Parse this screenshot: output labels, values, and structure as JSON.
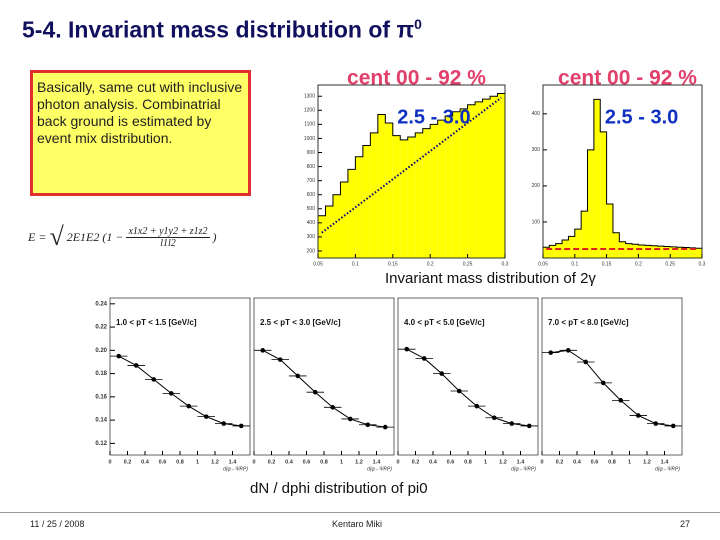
{
  "title": "5-4. Invariant mass distribution of π",
  "title_superscript": "0",
  "note": "Basically, same cut with inclusive photon analysis. Combinatrial back ground is estimated by event mix distribution.",
  "formula": {
    "lhs": "E = ",
    "root": "2E1E2",
    "open": "(1 −",
    "numerator": "x1x2 + y1y2 + z1z2",
    "denominator": "l1l2",
    "close": ")"
  },
  "caption_mass": "Invariant mass distribution of 2γ",
  "caption_dphi": "dN / dphi distribution of pi0",
  "footer": {
    "date": "11 / 25 / 2008",
    "author": "Kentaro Miki",
    "page": "27"
  },
  "chart_data": [
    {
      "type": "histogram",
      "title": "cent 00 - 92 %",
      "subtitle": "2.5 - 3.0",
      "color": "#ffff00",
      "background_color": "#000080",
      "background_style": "dotted",
      "bins": [
        0.05,
        0.06,
        0.07,
        0.08,
        0.09,
        0.1,
        0.11,
        0.12,
        0.13,
        0.14,
        0.15,
        0.16,
        0.17,
        0.18,
        0.19,
        0.2,
        0.21,
        0.22,
        0.23,
        0.24,
        0.25,
        0.26,
        0.27,
        0.28,
        0.29,
        0.3
      ],
      "counts": [
        450,
        520,
        600,
        690,
        780,
        870,
        950,
        1040,
        1170,
        1110,
        1020,
        990,
        1010,
        1040,
        1070,
        1100,
        1130,
        1160,
        1190,
        1210,
        1240,
        1260,
        1280,
        1300,
        1320
      ],
      "background": [
        330,
        370,
        410,
        450,
        490,
        530,
        570,
        610,
        650,
        690,
        730,
        770,
        810,
        850,
        890,
        930,
        970,
        1010,
        1050,
        1090,
        1130,
        1170,
        1210,
        1250,
        1290
      ],
      "xlim": [
        0.05,
        0.3
      ],
      "xticks": [
        0.05,
        0.1,
        0.15,
        0.2,
        0.25,
        0.3
      ],
      "ylim": [
        150,
        1380
      ],
      "yticks": [
        200,
        300,
        400,
        500,
        600,
        700,
        800,
        900,
        1000,
        1100,
        1200,
        1300
      ]
    },
    {
      "type": "histogram",
      "title": "cent 00 - 92 %",
      "subtitle": "2.5 - 3.0",
      "color": "#ffff00",
      "background_color": "#e02020",
      "background_style": "dashed",
      "bins": [
        0.05,
        0.06,
        0.07,
        0.08,
        0.09,
        0.1,
        0.11,
        0.12,
        0.13,
        0.14,
        0.15,
        0.16,
        0.17,
        0.18,
        0.19,
        0.2,
        0.21,
        0.22,
        0.23,
        0.24,
        0.25,
        0.26,
        0.27,
        0.28,
        0.29,
        0.3
      ],
      "counts": [
        30,
        35,
        40,
        50,
        60,
        80,
        130,
        300,
        440,
        350,
        150,
        70,
        45,
        40,
        38,
        36,
        35,
        34,
        33,
        32,
        31,
        30,
        29,
        28,
        27
      ],
      "background": [
        25,
        25,
        25,
        25,
        25,
        25,
        25,
        25,
        25,
        25,
        25,
        25,
        25,
        25,
        25,
        25,
        25,
        25,
        25,
        25,
        25,
        25,
        25,
        25,
        25
      ],
      "xlim": [
        0.05,
        0.3
      ],
      "xticks": [
        0.05,
        0.1,
        0.15,
        0.2,
        0.25,
        0.3
      ],
      "ylim": [
        0,
        480
      ],
      "yticks": [
        100,
        200,
        300,
        400
      ]
    },
    {
      "type": "panels",
      "xlabel": "d(φ - ΨRP)",
      "xerr": 0.1,
      "x": [
        0.1,
        0.3,
        0.5,
        0.7,
        0.9,
        1.1,
        1.3,
        1.5
      ],
      "xlim": [
        0,
        1.6
      ],
      "xticks": [
        0,
        0.2,
        0.4,
        0.6,
        0.8,
        1,
        1.2,
        1.4
      ],
      "ylim": [
        0.11,
        0.245
      ],
      "yticks": [
        0.12,
        0.14,
        0.16,
        0.18,
        {
          "value": 0.2,
          "label": "0.20"
        },
        0.22,
        0.24
      ],
      "series": [
        {
          "name": "1.0 < pT < 1.5 [GeV/c]",
          "color": "#000000",
          "values": [
            0.195,
            0.187,
            0.175,
            0.163,
            0.152,
            0.143,
            0.137,
            0.135
          ]
        },
        {
          "name": "2.5 < pT < 3.0 [GeV/c]",
          "color": "#000000",
          "values": [
            0.2,
            0.192,
            0.178,
            0.164,
            0.151,
            0.141,
            0.136,
            0.134
          ]
        },
        {
          "name": "4.0 < pT < 5.0 [GeV/c]",
          "color": "#000000",
          "values": [
            0.201,
            0.193,
            0.18,
            0.165,
            0.152,
            0.142,
            0.137,
            0.135
          ]
        },
        {
          "name": "7.0 < pT < 8.0 [GeV/c]",
          "color": "#000000",
          "values": [
            0.198,
            0.2,
            0.19,
            0.172,
            0.157,
            0.144,
            0.137,
            0.135
          ]
        }
      ]
    }
  ]
}
